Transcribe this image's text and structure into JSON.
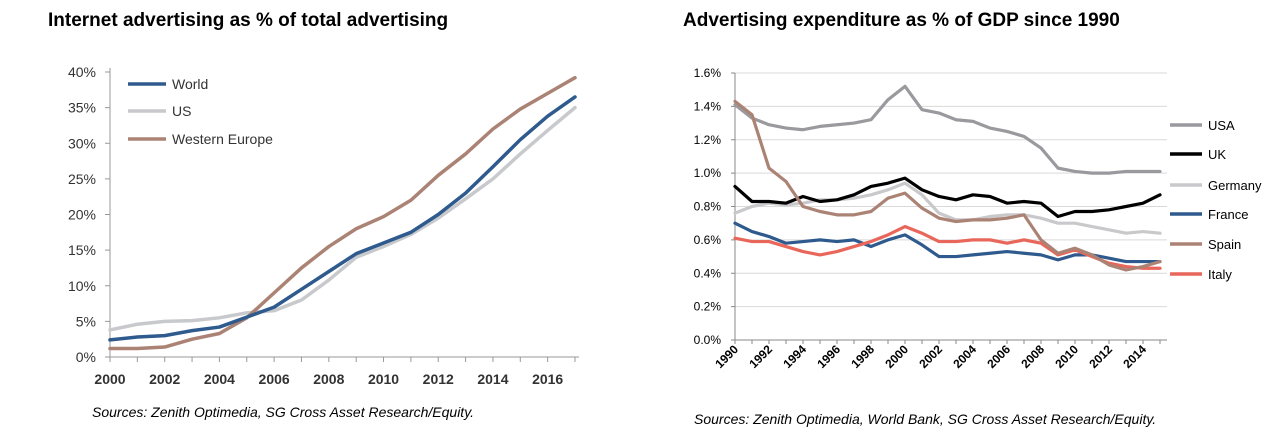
{
  "chart_data": [
    {
      "type": "line",
      "title": "Internet advertising as % of total advertising",
      "source": "Sources: Zenith Optimedia, SG Cross Asset Research/Equity.",
      "xlabel": "",
      "ylabel": "",
      "x": [
        2000,
        2001,
        2002,
        2003,
        2004,
        2005,
        2006,
        2007,
        2008,
        2009,
        2010,
        2011,
        2012,
        2013,
        2014,
        2015,
        2016,
        2017
      ],
      "xticks": [
        "2000",
        "2002",
        "2004",
        "2006",
        "2008",
        "2010",
        "2012",
        "2014",
        "2016"
      ],
      "yticks": [
        "0%",
        "5%",
        "10%",
        "15%",
        "20%",
        "25%",
        "30%",
        "35%",
        "40%"
      ],
      "ylim": [
        0,
        40
      ],
      "xlim": [
        2000,
        2017
      ],
      "grid": false,
      "legend_position": "top-left",
      "series": [
        {
          "name": "World",
          "color": "#2e5a8e",
          "values": [
            2.4,
            2.8,
            3.0,
            3.7,
            4.2,
            5.6,
            7.0,
            9.5,
            12.0,
            14.5,
            16.0,
            17.5,
            20.0,
            23.0,
            26.7,
            30.5,
            33.8,
            36.5
          ]
        },
        {
          "name": "US",
          "color": "#c8c9cc",
          "values": [
            3.8,
            4.6,
            5.0,
            5.1,
            5.5,
            6.2,
            6.5,
            8.0,
            10.8,
            14.0,
            15.5,
            17.2,
            19.5,
            22.2,
            25.0,
            28.5,
            31.8,
            35.0
          ]
        },
        {
          "name": "Western Europe",
          "color": "#ab8375",
          "values": [
            1.2,
            1.2,
            1.4,
            2.5,
            3.3,
            5.5,
            9.0,
            12.5,
            15.5,
            18.0,
            19.7,
            22.0,
            25.5,
            28.5,
            32.0,
            34.8,
            37.0,
            39.2
          ]
        }
      ]
    },
    {
      "type": "line",
      "title": "Advertising expenditure as % of GDP since 1990",
      "source": "Sources: Zenith Optimedia, World Bank, SG Cross Asset Research/Equity.",
      "xlabel": "",
      "ylabel": "",
      "x": [
        1990,
        1991,
        1992,
        1993,
        1994,
        1995,
        1996,
        1997,
        1998,
        1999,
        2000,
        2001,
        2002,
        2003,
        2004,
        2005,
        2006,
        2007,
        2008,
        2009,
        2010,
        2011,
        2012,
        2013,
        2014,
        2015
      ],
      "xticks": [
        "1990",
        "1992",
        "1994",
        "1996",
        "1998",
        "2000",
        "2002",
        "2004",
        "2006",
        "2008",
        "2010",
        "2012",
        "2014"
      ],
      "yticks": [
        "0.0%",
        "0.2%",
        "0.4%",
        "0.6%",
        "0.8%",
        "1.0%",
        "1.2%",
        "1.4%",
        "1.6%"
      ],
      "ylim": [
        0,
        1.6
      ],
      "xlim": [
        1990,
        2015
      ],
      "grid": true,
      "legend_position": "right",
      "series": [
        {
          "name": "USA",
          "color": "#9a999e",
          "values": [
            1.41,
            1.33,
            1.29,
            1.27,
            1.26,
            1.28,
            1.29,
            1.3,
            1.32,
            1.44,
            1.52,
            1.38,
            1.36,
            1.32,
            1.31,
            1.27,
            1.25,
            1.22,
            1.15,
            1.03,
            1.01,
            1.0,
            1.0,
            1.01,
            1.01,
            1.01
          ]
        },
        {
          "name": "UK",
          "color": "#000000",
          "values": [
            0.92,
            0.83,
            0.83,
            0.82,
            0.86,
            0.83,
            0.84,
            0.87,
            0.92,
            0.94,
            0.97,
            0.9,
            0.86,
            0.84,
            0.87,
            0.86,
            0.82,
            0.83,
            0.82,
            0.74,
            0.77,
            0.77,
            0.78,
            0.8,
            0.82,
            0.87
          ]
        },
        {
          "name": "Germany",
          "color": "#c9c9cc",
          "values": [
            0.76,
            0.8,
            0.82,
            0.81,
            0.82,
            0.84,
            0.84,
            0.85,
            0.87,
            0.9,
            0.94,
            0.87,
            0.76,
            0.72,
            0.72,
            0.74,
            0.75,
            0.75,
            0.73,
            0.7,
            0.7,
            0.68,
            0.66,
            0.64,
            0.65,
            0.64
          ]
        },
        {
          "name": "France",
          "color": "#2e5a8e",
          "values": [
            0.7,
            0.65,
            0.62,
            0.58,
            0.59,
            0.6,
            0.59,
            0.6,
            0.56,
            0.6,
            0.63,
            0.57,
            0.5,
            0.5,
            0.51,
            0.52,
            0.53,
            0.52,
            0.51,
            0.48,
            0.51,
            0.51,
            0.49,
            0.47,
            0.47,
            0.47
          ]
        },
        {
          "name": "Spain",
          "color": "#ab8375",
          "values": [
            1.43,
            1.35,
            1.03,
            0.95,
            0.8,
            0.77,
            0.75,
            0.75,
            0.77,
            0.85,
            0.88,
            0.79,
            0.73,
            0.71,
            0.72,
            0.72,
            0.73,
            0.75,
            0.6,
            0.52,
            0.55,
            0.51,
            0.45,
            0.42,
            0.44,
            0.47
          ]
        },
        {
          "name": "Italy",
          "color": "#e8665a",
          "values": [
            0.61,
            0.59,
            0.59,
            0.56,
            0.53,
            0.51,
            0.53,
            0.56,
            0.59,
            0.63,
            0.68,
            0.64,
            0.59,
            0.59,
            0.6,
            0.6,
            0.58,
            0.6,
            0.58,
            0.51,
            0.54,
            0.5,
            0.46,
            0.44,
            0.43,
            0.43
          ]
        }
      ]
    }
  ]
}
